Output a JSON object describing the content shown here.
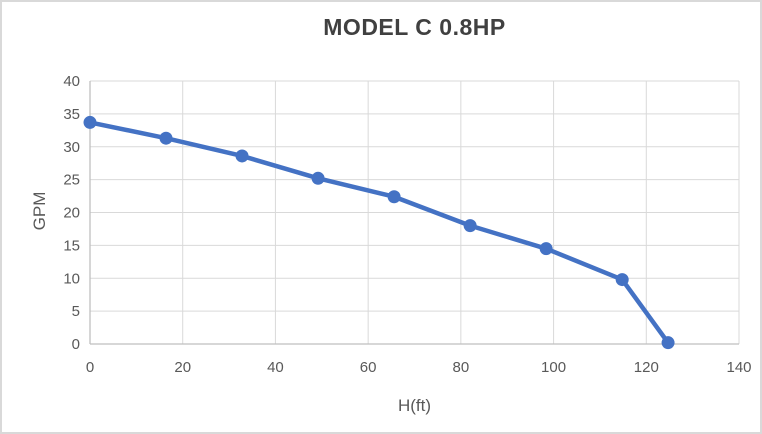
{
  "chart_data": {
    "type": "line",
    "title": "MODEL C 0.8HP",
    "xlabel": "H(ft)",
    "ylabel": "GPM",
    "xlim": [
      0,
      140
    ],
    "ylim": [
      0,
      40
    ],
    "x_ticks": [
      0,
      20,
      40,
      60,
      80,
      100,
      120,
      140
    ],
    "y_ticks": [
      0,
      5,
      10,
      15,
      20,
      25,
      30,
      35,
      40
    ],
    "grid": true,
    "legend_position": "none",
    "series": [
      {
        "name": "MODEL C 0.8HP",
        "marker": "circle",
        "x": [
          0,
          16.4,
          32.8,
          49.2,
          65.6,
          82.0,
          98.4,
          114.8,
          124.7
        ],
        "y": [
          33.7,
          31.3,
          28.6,
          25.2,
          22.4,
          18.0,
          14.5,
          9.8,
          0.2
        ]
      }
    ]
  },
  "colors": {
    "series_line": "#4472c4",
    "marker_fill": "#4472c4",
    "title_text": "#404040",
    "axis_text": "#595959",
    "gridline": "#d9d9d9",
    "axis_line": "#bfbfbf",
    "figure_border": "#d9d9d9",
    "background": "#ffffff"
  }
}
